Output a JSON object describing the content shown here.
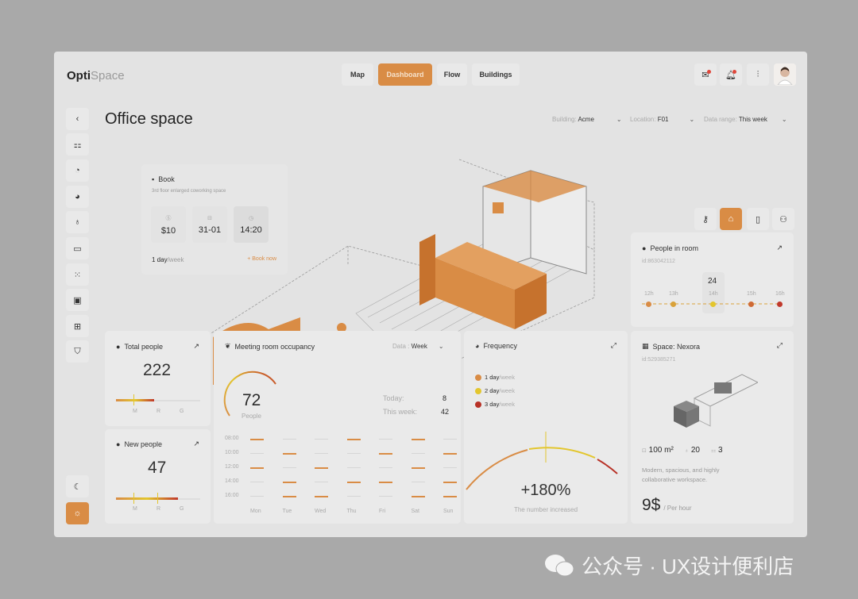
{
  "app": {
    "logo_bold": "Opti",
    "logo_light": "Space"
  },
  "nav": [
    {
      "label": "Map"
    },
    {
      "label": "Dashboard"
    },
    {
      "label": "Flow"
    },
    {
      "label": "Buildings"
    }
  ],
  "header_icons": [
    "mail-icon",
    "bell-icon",
    "sliders-icon"
  ],
  "page_title": "Office space",
  "filters": [
    {
      "label": "Building:",
      "value": "Acme"
    },
    {
      "label": "Location:",
      "value": "F01"
    },
    {
      "label": "Data range:",
      "value": "This week"
    }
  ],
  "sidebar": [
    "back",
    "grid",
    "pie",
    "globe",
    "user",
    "folder",
    "scan",
    "calendar",
    "plus-square",
    "shield"
  ],
  "book": {
    "title": "Book",
    "subtitle": "3rd floor enlarged coworking space",
    "price": "$10",
    "date": "31-01",
    "time": "14:20",
    "freq_bold": "1 day",
    "freq_light": "/week",
    "cta": "+ Book now"
  },
  "people_in_room": {
    "title": "People in room",
    "id": "id:863042112",
    "peak": "24",
    "hours": [
      "12h",
      "13h",
      "14h",
      "15h",
      "16h"
    ],
    "colors": [
      "#d98c45",
      "#d9a23a",
      "#e3c62e",
      "#cf6a35",
      "#c0392b"
    ]
  },
  "total_people": {
    "title": "Total people",
    "value": "222",
    "scale": [
      "M",
      "R",
      "G"
    ],
    "level": 0.45
  },
  "new_people": {
    "title": "New people",
    "value": "47",
    "scale": [
      "M",
      "R",
      "G"
    ],
    "level": 0.78
  },
  "meeting": {
    "title": "Meeting room occupancy",
    "data_label": "Data :",
    "data_value": "Week",
    "gauge_value": "72",
    "gauge_label": "People",
    "today_label": "Today:",
    "today": "8",
    "week_label": "This week:",
    "week": "42",
    "times": [
      "08:00",
      "10:00",
      "12:00",
      "14:00",
      "16:00"
    ],
    "days": [
      "Mon",
      "Tue",
      "Wed",
      "Thu",
      "Fri",
      "Sat",
      "Sun"
    ],
    "occupied": [
      [
        1,
        0,
        0,
        1,
        0,
        1,
        0
      ],
      [
        0,
        1,
        0,
        0,
        1,
        0,
        1
      ],
      [
        1,
        0,
        1,
        0,
        0,
        1,
        0
      ],
      [
        0,
        1,
        0,
        1,
        1,
        0,
        1
      ],
      [
        0,
        1,
        1,
        0,
        0,
        1,
        1
      ]
    ]
  },
  "frequency": {
    "title": "Frequency",
    "legend": [
      {
        "bold": "1 day",
        "light": "/week",
        "color": "#d98c45"
      },
      {
        "bold": "2 day",
        "light": "/week",
        "color": "#e3c62e"
      },
      {
        "bold": "3 day",
        "light": "/week",
        "color": "#b83227"
      }
    ],
    "value": "+180%",
    "caption": "The number increased"
  },
  "space": {
    "title": "Space: Nexora",
    "id": "id:529385271",
    "area": "100 m²",
    "people": "20",
    "rooms": "3",
    "desc": "Modern, spacious, and highly collaborative workspace.",
    "price": "9$",
    "price_unit": "/ Per hour"
  },
  "accent": "#d98c45",
  "watermark": "公众号 · UX设计便利店"
}
